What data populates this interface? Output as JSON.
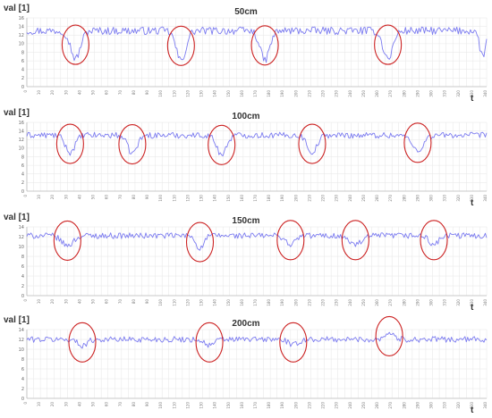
{
  "chart_data": [
    {
      "type": "line",
      "title": "50cm",
      "ylabel": "val [1]",
      "xlabel": "t",
      "ylim": [
        0,
        16
      ],
      "yticks": [
        0,
        2,
        4,
        6,
        8,
        10,
        12,
        14,
        16
      ],
      "xlim": [
        0,
        340
      ],
      "xtick_step": 10,
      "baseline": 13,
      "noise": 0.9,
      "color": "#7b7bf0",
      "dips": [
        {
          "center": 36,
          "depth": 6.5,
          "width": 5
        },
        {
          "center": 114,
          "depth": 7,
          "width": 5
        },
        {
          "center": 176,
          "depth": 6.8,
          "width": 5
        },
        {
          "center": 267,
          "depth": 6.5,
          "width": 5
        },
        {
          "center": 337,
          "depth": 6,
          "width": 3
        }
      ],
      "highlighted_regions": [
        36,
        114,
        176,
        267
      ]
    },
    {
      "type": "line",
      "title": "100cm",
      "ylabel": "val [1]",
      "xlabel": "t",
      "ylim": [
        0,
        16
      ],
      "yticks": [
        0,
        2,
        4,
        6,
        8,
        10,
        12,
        14,
        16
      ],
      "xlim": [
        0,
        340
      ],
      "xtick_step": 10,
      "baseline": 13,
      "noise": 0.7,
      "color": "#7b7bf0",
      "dips": [
        {
          "center": 32,
          "depth": 4,
          "width": 5
        },
        {
          "center": 78,
          "depth": 4.2,
          "width": 5
        },
        {
          "center": 144,
          "depth": 4.5,
          "width": 5
        },
        {
          "center": 211,
          "depth": 4,
          "width": 5
        },
        {
          "center": 289,
          "depth": 3.5,
          "width": 6
        }
      ],
      "highlighted_regions": [
        32,
        78,
        144,
        211,
        289
      ]
    },
    {
      "type": "line",
      "title": "150cm",
      "ylabel": "val [1]",
      "xlabel": "t",
      "ylim": [
        0,
        14
      ],
      "yticks": [
        0,
        2,
        4,
        6,
        8,
        10,
        12,
        14
      ],
      "xlim": [
        0,
        340
      ],
      "xtick_step": 10,
      "baseline": 12.2,
      "noise": 0.6,
      "color": "#7b7bf0",
      "dips": [
        {
          "center": 30,
          "depth": 2,
          "width": 6
        },
        {
          "center": 128,
          "depth": 2.6,
          "width": 4
        },
        {
          "center": 195,
          "depth": 1.8,
          "width": 5
        },
        {
          "center": 243,
          "depth": 1.8,
          "width": 7
        },
        {
          "center": 301,
          "depth": 1.8,
          "width": 5
        }
      ],
      "highlighted_regions": [
        30,
        128,
        195,
        243,
        301
      ]
    },
    {
      "type": "line",
      "title": "200cm",
      "ylabel": "val [1]",
      "xlabel": "t",
      "ylim": [
        0,
        14
      ],
      "yticks": [
        0,
        2,
        4,
        6,
        8,
        10,
        12,
        14
      ],
      "xlim": [
        0,
        340
      ],
      "xtick_step": 10,
      "baseline": 12,
      "noise": 0.6,
      "color": "#7b7bf0",
      "dips": [
        {
          "center": 41,
          "depth": 1.2,
          "width": 5
        },
        {
          "center": 135,
          "depth": 1.2,
          "width": 5
        },
        {
          "center": 197,
          "depth": 1.2,
          "width": 5
        },
        {
          "center": 268,
          "depth": -1.3,
          "width": 5
        }
      ],
      "highlighted_regions": [
        41,
        135,
        197,
        268
      ]
    }
  ],
  "style": {
    "grid_color": "#e6e6e6",
    "axis_color": "#bbbbbb",
    "circle_color": "#cc2222"
  }
}
